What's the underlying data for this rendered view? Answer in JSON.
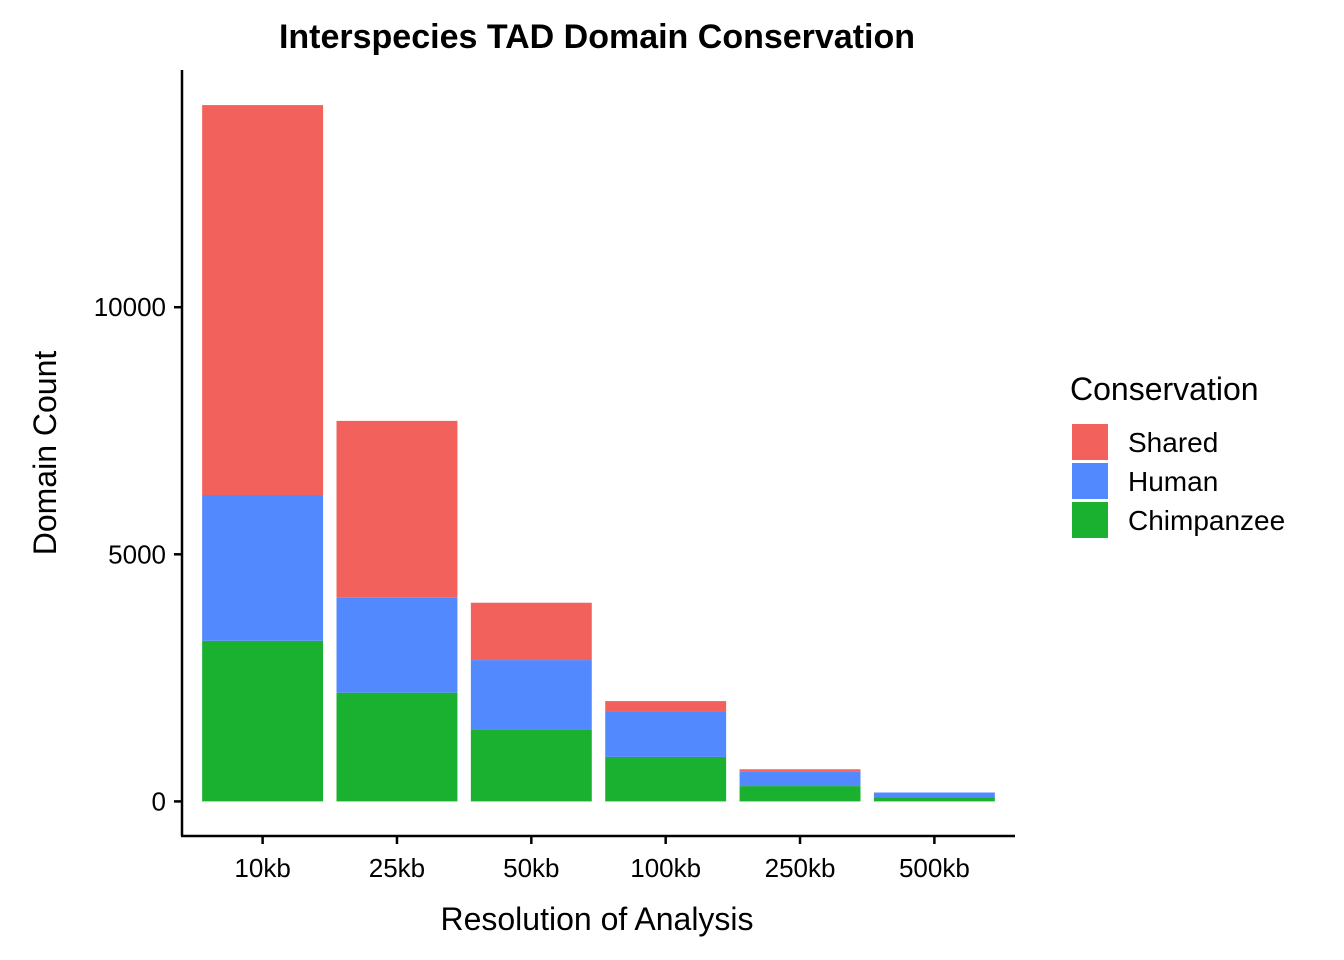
{
  "chart_data": {
    "type": "bar",
    "stacked": true,
    "title": "Interspecies TAD Domain Conservation",
    "xlabel": "Resolution of Analysis",
    "ylabel": "Domain Count",
    "categories": [
      "10kb",
      "25kb",
      "50kb",
      "100kb",
      "250kb",
      "500kb"
    ],
    "y_ticks": [
      0,
      5000,
      10000
    ],
    "y_tick_labels": [
      "0",
      "5000",
      "10000"
    ],
    "ylim": [
      -700,
      14800
    ],
    "grid": false,
    "legend": {
      "title": "Conservation",
      "position": "right",
      "entries": [
        "Shared",
        "Human",
        "Chimpanzee"
      ]
    },
    "series": [
      {
        "name": "Chimpanzee",
        "color": "#19B12F",
        "values": [
          3250,
          2200,
          1460,
          900,
          310,
          80
        ]
      },
      {
        "name": "Human",
        "color": "#5389FF",
        "values": [
          2950,
          1920,
          1400,
          910,
          300,
          100
        ]
      },
      {
        "name": "Shared",
        "color": "#F3615C",
        "values": [
          7890,
          3580,
          1160,
          220,
          40,
          0
        ]
      }
    ]
  }
}
